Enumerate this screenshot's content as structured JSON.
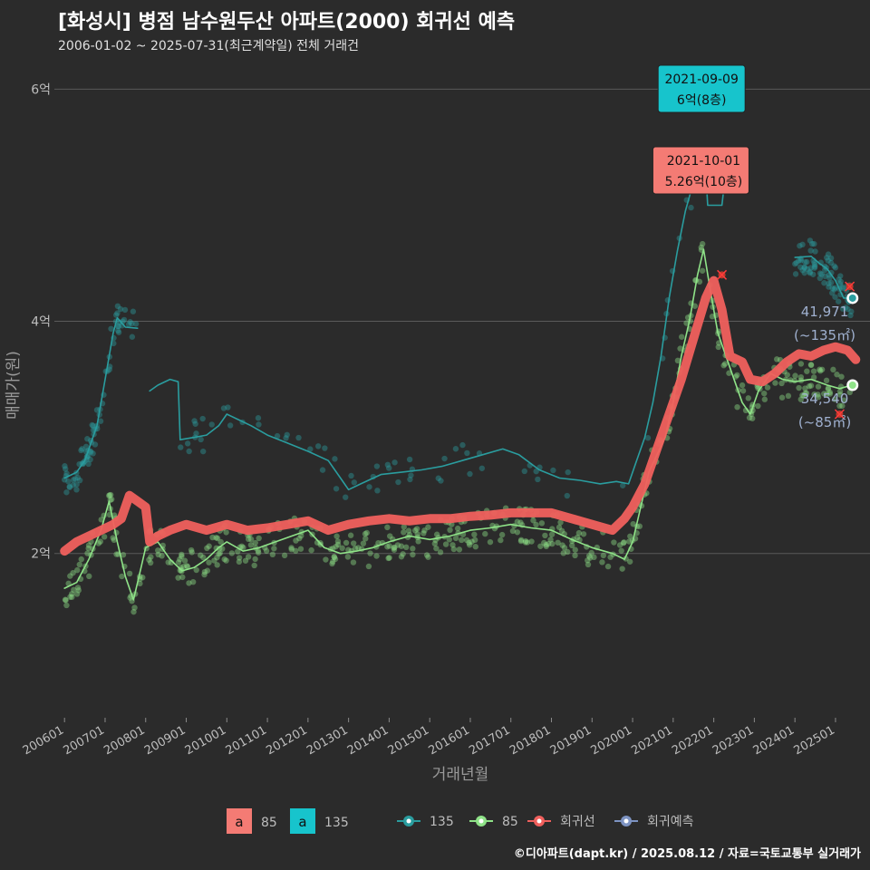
{
  "header": {
    "title": "[화성시] 병점 남수원두산 아파트(2000) 회귀선 예측",
    "subtitle": "2006-01-02 ~ 2025-07-31(최근계약일) 전체 거래건"
  },
  "credit": "©디아파트(dapt.kr) / 2025.08.12 / 자료=국토교통부 실거래가",
  "colors": {
    "s135": "#2a9d9f",
    "s85": "#8fe388",
    "reg": "#f0605d",
    "pred": "#7d93c2",
    "box135": "#17c4cc",
    "box85": "#f47b74"
  },
  "chart_data": {
    "type": "line",
    "xlabel": "거래년월",
    "ylabel": "매매가(원)",
    "ylim": [
      0.6,
      6.3
    ],
    "xlim": [
      2005.75,
      2025.85
    ],
    "yticks": [
      {
        "v": 2,
        "label": "2억"
      },
      {
        "v": 4,
        "label": "4억"
      },
      {
        "v": 6,
        "label": "6억"
      }
    ],
    "xticks": [
      {
        "v": 2006.0,
        "label": "200601"
      },
      {
        "v": 2007.0,
        "label": "200701"
      },
      {
        "v": 2008.0,
        "label": "200801"
      },
      {
        "v": 2009.0,
        "label": "200901"
      },
      {
        "v": 2010.0,
        "label": "201001"
      },
      {
        "v": 2011.0,
        "label": "201101"
      },
      {
        "v": 2012.0,
        "label": "201201"
      },
      {
        "v": 2013.0,
        "label": "201301"
      },
      {
        "v": 2014.0,
        "label": "201401"
      },
      {
        "v": 2015.0,
        "label": "201501"
      },
      {
        "v": 2016.0,
        "label": "201601"
      },
      {
        "v": 2017.0,
        "label": "201701"
      },
      {
        "v": 2018.0,
        "label": "201801"
      },
      {
        "v": 2019.0,
        "label": "201901"
      },
      {
        "v": 2020.0,
        "label": "202001"
      },
      {
        "v": 2021.0,
        "label": "202101"
      },
      {
        "v": 2022.0,
        "label": "202201"
      },
      {
        "v": 2023.0,
        "label": "202301"
      },
      {
        "v": 2024.0,
        "label": "202401"
      },
      {
        "v": 2025.0,
        "label": "202501"
      }
    ],
    "series": [
      {
        "name": "135",
        "color": "#2a9d9f",
        "segments": [
          [
            [
              2006.0,
              2.65
            ],
            [
              2006.3,
              2.7
            ],
            [
              2006.5,
              2.8
            ],
            [
              2006.8,
              3.1
            ],
            [
              2007.0,
              3.5
            ],
            [
              2007.2,
              3.9
            ],
            [
              2007.3,
              4.03
            ],
            [
              2007.5,
              3.95
            ],
            [
              2007.8,
              3.94
            ]
          ],
          [
            [
              2008.1,
              3.4
            ],
            [
              2008.3,
              3.45
            ],
            [
              2008.6,
              3.5
            ],
            [
              2008.8,
              3.48
            ],
            [
              2008.85,
              2.98
            ],
            [
              2009.2,
              3.0
            ],
            [
              2009.5,
              3.02
            ],
            [
              2009.8,
              3.1
            ],
            [
              2010.0,
              3.2
            ],
            [
              2010.3,
              3.15
            ],
            [
              2010.6,
              3.1
            ],
            [
              2011.0,
              3.02
            ],
            [
              2011.5,
              2.95
            ],
            [
              2012.0,
              2.88
            ],
            [
              2012.5,
              2.8
            ],
            [
              2012.8,
              2.65
            ],
            [
              2013.0,
              2.55
            ],
            [
              2013.3,
              2.6
            ],
            [
              2013.8,
              2.68
            ],
            [
              2014.3,
              2.7
            ],
            [
              2014.8,
              2.72
            ],
            [
              2015.3,
              2.75
            ],
            [
              2015.8,
              2.8
            ],
            [
              2016.3,
              2.85
            ],
            [
              2016.8,
              2.9
            ],
            [
              2017.2,
              2.85
            ],
            [
              2017.7,
              2.72
            ],
            [
              2018.2,
              2.65
            ],
            [
              2018.7,
              2.63
            ],
            [
              2019.2,
              2.6
            ],
            [
              2019.6,
              2.62
            ],
            [
              2019.9,
              2.6
            ],
            [
              2020.1,
              2.8
            ],
            [
              2020.3,
              3.0
            ],
            [
              2020.5,
              3.3
            ],
            [
              2020.7,
              3.7
            ],
            [
              2020.9,
              4.2
            ],
            [
              2021.1,
              4.6
            ],
            [
              2021.3,
              4.95
            ],
            [
              2021.5,
              5.2
            ],
            [
              2021.7,
              5.35
            ],
            [
              2021.8,
              5.3
            ],
            [
              2021.85,
              5.0
            ],
            [
              2022.2,
              5.0
            ],
            [
              2022.3,
              5.3
            ],
            [
              2022.7,
              5.29
            ]
          ],
          [
            [
              2024.0,
              4.55
            ],
            [
              2024.4,
              4.56
            ],
            [
              2024.6,
              4.5
            ],
            [
              2024.8,
              4.45
            ],
            [
              2025.0,
              4.35
            ],
            [
              2025.2,
              4.2
            ],
            [
              2025.4,
              4.2
            ]
          ]
        ]
      },
      {
        "name": "85",
        "color": "#8fe388",
        "segments": [
          [
            [
              2006.0,
              1.7
            ],
            [
              2006.3,
              1.75
            ],
            [
              2006.6,
              1.95
            ],
            [
              2006.9,
              2.2
            ],
            [
              2007.1,
              2.45
            ],
            [
              2007.3,
              2.1
            ],
            [
              2007.5,
              1.8
            ],
            [
              2007.7,
              1.6
            ],
            [
              2007.9,
              1.9
            ],
            [
              2008.0,
              2.05
            ],
            [
              2008.3,
              2.1
            ],
            [
              2008.6,
              1.95
            ],
            [
              2008.9,
              1.85
            ],
            [
              2009.2,
              1.88
            ],
            [
              2009.5,
              1.95
            ],
            [
              2009.8,
              2.05
            ],
            [
              2010.0,
              2.1
            ],
            [
              2010.4,
              2.02
            ],
            [
              2010.8,
              2.05
            ],
            [
              2011.2,
              2.1
            ],
            [
              2011.6,
              2.15
            ],
            [
              2012.0,
              2.2
            ],
            [
              2012.4,
              2.05
            ],
            [
              2012.8,
              2.0
            ],
            [
              2013.2,
              2.02
            ],
            [
              2013.6,
              2.05
            ],
            [
              2014.0,
              2.1
            ],
            [
              2014.5,
              2.15
            ],
            [
              2015.0,
              2.12
            ],
            [
              2015.5,
              2.15
            ],
            [
              2016.0,
              2.2
            ],
            [
              2016.5,
              2.22
            ],
            [
              2017.0,
              2.25
            ],
            [
              2017.5,
              2.22
            ],
            [
              2018.0,
              2.2
            ],
            [
              2018.5,
              2.12
            ],
            [
              2019.0,
              2.05
            ],
            [
              2019.5,
              2.0
            ],
            [
              2019.8,
              1.95
            ],
            [
              2020.0,
              2.1
            ],
            [
              2020.2,
              2.4
            ],
            [
              2020.4,
              2.7
            ],
            [
              2020.6,
              2.85
            ],
            [
              2020.8,
              3.0
            ],
            [
              2021.0,
              3.3
            ],
            [
              2021.2,
              3.7
            ],
            [
              2021.4,
              4.0
            ],
            [
              2021.6,
              4.4
            ],
            [
              2021.75,
              4.62
            ],
            [
              2021.9,
              4.3
            ],
            [
              2022.1,
              3.9
            ],
            [
              2022.4,
              3.6
            ],
            [
              2022.7,
              3.3
            ],
            [
              2022.9,
              3.2
            ],
            [
              2023.1,
              3.4
            ],
            [
              2023.4,
              3.55
            ],
            [
              2023.7,
              3.5
            ],
            [
              2024.0,
              3.48
            ],
            [
              2024.4,
              3.5
            ],
            [
              2024.8,
              3.45
            ],
            [
              2025.1,
              3.42
            ],
            [
              2025.4,
              3.45
            ]
          ]
        ]
      },
      {
        "name": "회귀선",
        "color": "#f0605d",
        "segments": [
          [
            [
              2006.0,
              2.02
            ],
            [
              2006.3,
              2.1
            ],
            [
              2006.6,
              2.15
            ],
            [
              2006.9,
              2.2
            ],
            [
              2007.2,
              2.25
            ],
            [
              2007.4,
              2.3
            ],
            [
              2007.6,
              2.5
            ],
            [
              2007.8,
              2.45
            ],
            [
              2008.0,
              2.4
            ],
            [
              2008.1,
              2.1
            ],
            [
              2008.3,
              2.15
            ],
            [
              2008.6,
              2.2
            ],
            [
              2009.0,
              2.25
            ],
            [
              2009.5,
              2.2
            ],
            [
              2010.0,
              2.25
            ],
            [
              2010.5,
              2.2
            ],
            [
              2011.0,
              2.22
            ],
            [
              2011.5,
              2.25
            ],
            [
              2012.0,
              2.28
            ],
            [
              2012.5,
              2.2
            ],
            [
              2013.0,
              2.25
            ],
            [
              2013.5,
              2.28
            ],
            [
              2014.0,
              2.3
            ],
            [
              2014.5,
              2.28
            ],
            [
              2015.0,
              2.3
            ],
            [
              2015.5,
              2.3
            ],
            [
              2016.0,
              2.32
            ],
            [
              2016.5,
              2.33
            ],
            [
              2017.0,
              2.35
            ],
            [
              2017.5,
              2.35
            ],
            [
              2018.0,
              2.35
            ],
            [
              2018.5,
              2.3
            ],
            [
              2019.0,
              2.25
            ],
            [
              2019.5,
              2.2
            ],
            [
              2019.8,
              2.3
            ],
            [
              2020.0,
              2.4
            ],
            [
              2020.3,
              2.6
            ],
            [
              2020.6,
              2.9
            ],
            [
              2020.9,
              3.2
            ],
            [
              2021.2,
              3.5
            ],
            [
              2021.5,
              3.85
            ],
            [
              2021.8,
              4.2
            ],
            [
              2022.0,
              4.35
            ],
            [
              2022.2,
              4.1
            ],
            [
              2022.4,
              3.7
            ],
            [
              2022.7,
              3.65
            ],
            [
              2022.9,
              3.5
            ],
            [
              2023.2,
              3.48
            ],
            [
              2023.5,
              3.55
            ],
            [
              2023.8,
              3.65
            ],
            [
              2024.1,
              3.72
            ],
            [
              2024.4,
              3.7
            ],
            [
              2024.7,
              3.75
            ],
            [
              2025.0,
              3.78
            ],
            [
              2025.3,
              3.75
            ],
            [
              2025.5,
              3.67
            ]
          ]
        ]
      }
    ],
    "annotations": [
      {
        "series": "135",
        "x": 2021.7,
        "y": 6.0,
        "date": "2021-09-09",
        "price": "6억(8층)"
      },
      {
        "series": "85",
        "x": 2021.75,
        "y": 5.26,
        "date": "2021-10-01",
        "price": "5.26억(10층)"
      }
    ],
    "end_labels": [
      {
        "series": "135",
        "x": 2025.42,
        "y": 4.2,
        "value": "41,971",
        "area": "(~135㎡)"
      },
      {
        "series": "85",
        "x": 2025.42,
        "y": 3.45,
        "value": "34,540",
        "area": "(~85㎡)"
      }
    ],
    "cancel_marks": [
      {
        "x": 2025.35,
        "y": 4.3
      },
      {
        "x": 2025.1,
        "y": 3.2
      },
      {
        "x": 2022.2,
        "y": 4.4
      }
    ],
    "legend": {
      "boxes": [
        {
          "label": "85",
          "letter": "a"
        },
        {
          "label": "135",
          "letter": "a"
        }
      ],
      "lines": [
        {
          "label": "135"
        },
        {
          "label": "85"
        },
        {
          "label": "회귀선"
        },
        {
          "label": "회귀예측"
        }
      ]
    }
  }
}
